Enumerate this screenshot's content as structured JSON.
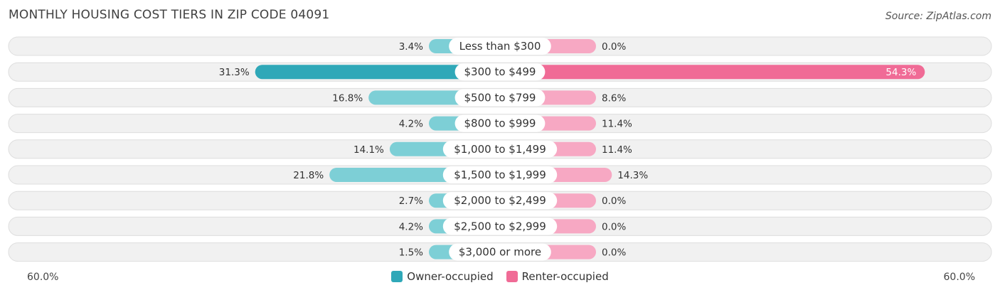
{
  "title": "MONTHLY HOUSING COST TIERS IN ZIP CODE 04091",
  "source": "Source: ZipAtlas.com",
  "colors": {
    "owner_strong": "#2fa8b8",
    "owner_light": "#7dcfd6",
    "renter_strong": "#f06b96",
    "renter_light": "#f7a8c3",
    "row_bg": "#f1f1f1",
    "row_border": "#dedede"
  },
  "legend": {
    "owner": "Owner-occupied",
    "renter": "Renter-occupied"
  },
  "axis": {
    "left_label": "60.0%",
    "right_label": "60.0%"
  },
  "chart_data": {
    "type": "bar",
    "orientation": "horizontal-diverging",
    "title": "MONTHLY HOUSING COST TIERS IN ZIP CODE 04091",
    "xlim": [
      -60,
      60
    ],
    "categories": [
      "Less than $300",
      "$300 to $499",
      "$500 to $799",
      "$800 to $999",
      "$1,000 to $1,499",
      "$1,500 to $1,999",
      "$2,000 to $2,499",
      "$2,500 to $2,999",
      "$3,000 or more"
    ],
    "series": [
      {
        "name": "Owner-occupied",
        "side": "left",
        "values": [
          3.4,
          31.3,
          16.8,
          4.2,
          14.1,
          21.8,
          2.7,
          4.2,
          1.5
        ],
        "labels": [
          "3.4%",
          "31.3%",
          "16.8%",
          "4.2%",
          "14.1%",
          "21.8%",
          "2.7%",
          "4.2%",
          "1.5%"
        ]
      },
      {
        "name": "Renter-occupied",
        "side": "right",
        "values": [
          0.0,
          54.3,
          8.6,
          11.4,
          11.4,
          14.3,
          0.0,
          0.0,
          0.0
        ],
        "labels": [
          "0.0%",
          "54.3%",
          "8.6%",
          "11.4%",
          "11.4%",
          "14.3%",
          "0.0%",
          "0.0%",
          "0.0%"
        ]
      }
    ]
  }
}
